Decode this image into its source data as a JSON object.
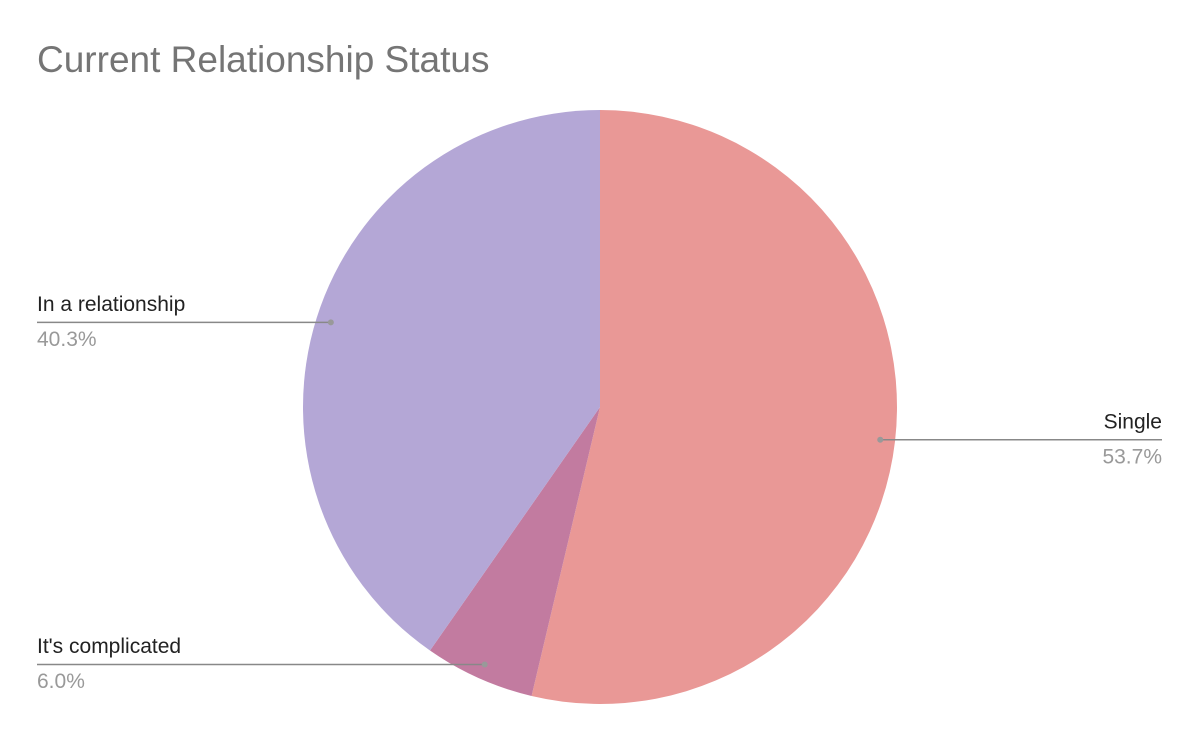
{
  "chart_data": {
    "type": "pie",
    "title": "Current Relationship Status",
    "categories": [
      "Single",
      "It's complicated",
      "In a relationship"
    ],
    "values": [
      53.7,
      6.0,
      40.3
    ],
    "value_labels": [
      "53.7%",
      "6.0%",
      "40.3%"
    ],
    "colors": [
      "#e99896",
      "#c27ba0",
      "#b4a7d6"
    ]
  }
}
